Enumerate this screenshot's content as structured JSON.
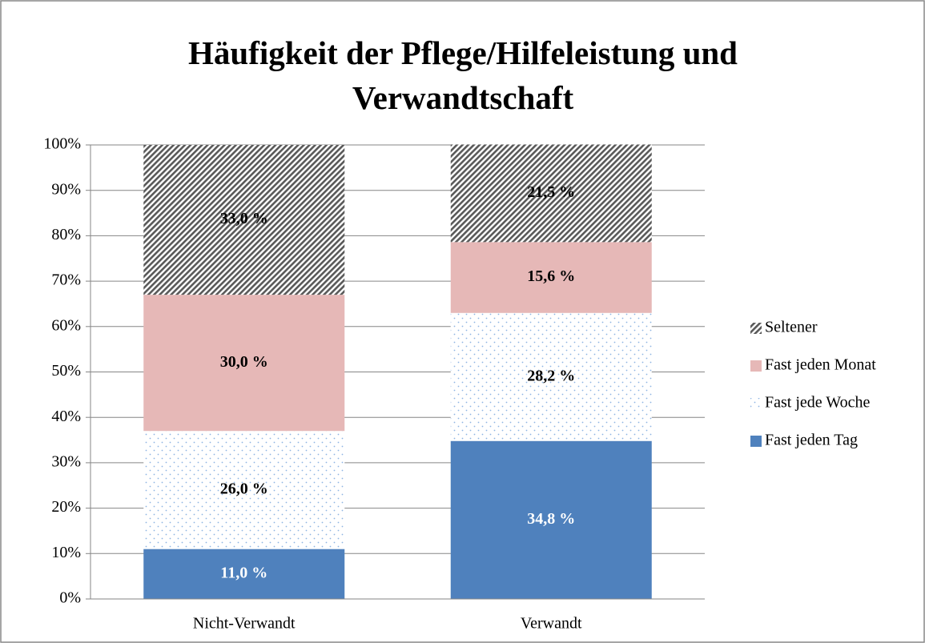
{
  "chart_data": {
    "type": "stacked_bar",
    "title": "Häufigkeit der Pflege/Hilfeleistung und Verwandtschaft",
    "categories": [
      "Nicht-Verwandt",
      "Verwandt"
    ],
    "series": [
      {
        "name": "Fast jeden Tag",
        "color": "#4f81bd",
        "values": [
          11.0,
          34.8
        ],
        "value_labels": [
          "11,0 %",
          "34,8 %"
        ]
      },
      {
        "name": "Fast jede Woche",
        "color": "#8eb4e3",
        "pattern": "dots",
        "values": [
          26.0,
          28.2
        ],
        "value_labels": [
          "26,0 %",
          "28,2 %"
        ]
      },
      {
        "name": "Fast jeden Monat",
        "color": "#e6b8b7",
        "values": [
          30.0,
          15.6
        ],
        "value_labels": [
          "30,0 %",
          "15,6 %"
        ]
      },
      {
        "name": "Seltener",
        "color": "#595959",
        "pattern": "diagonal",
        "values": [
          33.0,
          21.5
        ],
        "value_labels": [
          "33,0 %",
          "21,5 %"
        ]
      }
    ],
    "ylim": [
      0,
      100
    ],
    "yticks": [
      {
        "value": 0,
        "label": "0%"
      },
      {
        "value": 10,
        "label": "10%"
      },
      {
        "value": 20,
        "label": "20%"
      },
      {
        "value": 30,
        "label": "30%"
      },
      {
        "value": 40,
        "label": "40%"
      },
      {
        "value": 50,
        "label": "50%"
      },
      {
        "value": 60,
        "label": "60%"
      },
      {
        "value": 70,
        "label": "70%"
      },
      {
        "value": 80,
        "label": "80%"
      },
      {
        "value": 90,
        "label": "90%"
      },
      {
        "value": 100,
        "label": "100%"
      }
    ],
    "grid": true,
    "legend": "right"
  }
}
